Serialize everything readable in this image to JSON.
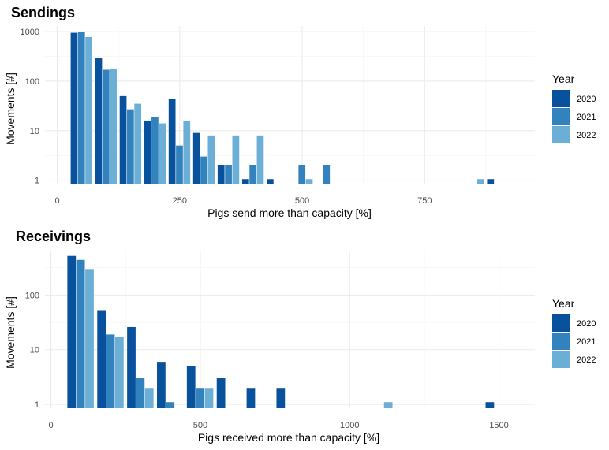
{
  "chart_data": [
    {
      "type": "bar",
      "title": "Sendings",
      "xlabel": "Pigs send more than capacity [%]",
      "ylabel": "Movements [#]",
      "y_scale": "log10",
      "xlim": [
        -25,
        975
      ],
      "ylim": [
        0.85,
        1300
      ],
      "x_ticks": [
        0,
        250,
        500,
        750
      ],
      "y_ticks": [
        1,
        10,
        100,
        1000
      ],
      "bin_width": 50,
      "legend_title": "Year",
      "legend_position": "right",
      "grid": true,
      "series": [
        {
          "name": "2020",
          "color": "#08519c",
          "points": [
            [
              50,
              950
            ],
            [
              100,
              300
            ],
            [
              150,
              50
            ],
            [
              200,
              16
            ],
            [
              250,
              43
            ],
            [
              300,
              9
            ],
            [
              350,
              2
            ],
            [
              400,
              1.05
            ],
            [
              450,
              1.05
            ],
            [
              900,
              1.05
            ]
          ]
        },
        {
          "name": "2021",
          "color": "#3182bd",
          "points": [
            [
              50,
              980
            ],
            [
              100,
              170
            ],
            [
              150,
              27
            ],
            [
              200,
              19
            ],
            [
              250,
              5
            ],
            [
              300,
              3
            ],
            [
              350,
              2
            ],
            [
              400,
              2
            ],
            [
              500,
              2
            ],
            [
              550,
              2
            ]
          ]
        },
        {
          "name": "2022",
          "color": "#6baed6",
          "points": [
            [
              50,
              780
            ],
            [
              100,
              180
            ],
            [
              150,
              35
            ],
            [
              200,
              14
            ],
            [
              250,
              16
            ],
            [
              300,
              8
            ],
            [
              350,
              8
            ],
            [
              400,
              8
            ],
            [
              500,
              1.05
            ],
            [
              850,
              1.05
            ]
          ]
        }
      ]
    },
    {
      "type": "bar",
      "title": "Receivings",
      "xlabel": "Pigs received more than capacity [%]",
      "ylabel": "Movements [#]",
      "y_scale": "log10",
      "xlim": [
        -20,
        1620
      ],
      "ylim": [
        0.85,
        650
      ],
      "x_ticks": [
        0,
        500,
        1000,
        1500
      ],
      "y_ticks": [
        1,
        10,
        100
      ],
      "bin_width": 100,
      "legend_title": "Year",
      "legend_position": "right",
      "grid": true,
      "series": [
        {
          "name": "2020",
          "color": "#08519c",
          "points": [
            [
              100,
              520
            ],
            [
              200,
              53
            ],
            [
              300,
              26
            ],
            [
              400,
              6
            ],
            [
              500,
              5
            ],
            [
              600,
              3
            ],
            [
              700,
              2
            ],
            [
              800,
              2
            ],
            [
              1500,
              1.1
            ]
          ]
        },
        {
          "name": "2021",
          "color": "#3182bd",
          "points": [
            [
              100,
              440
            ],
            [
              200,
              19
            ],
            [
              300,
              3
            ],
            [
              400,
              1.1
            ],
            [
              500,
              2
            ]
          ]
        },
        {
          "name": "2022",
          "color": "#6baed6",
          "points": [
            [
              100,
              300
            ],
            [
              200,
              17
            ],
            [
              300,
              2
            ],
            [
              500,
              2
            ],
            [
              1100,
              1.1
            ]
          ]
        }
      ]
    }
  ]
}
